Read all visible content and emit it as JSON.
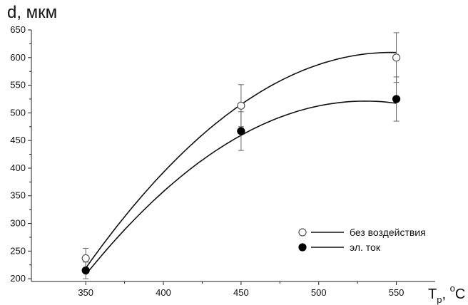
{
  "chart_data": {
    "type": "line",
    "ylabel": "d, мкм",
    "xlabel": {
      "main": "T",
      "sub": "р",
      "sep": ", ",
      "sup": "o",
      "unit": "C"
    },
    "x_ticks": [
      350,
      400,
      450,
      500,
      550
    ],
    "y_ticks": [
      200,
      250,
      300,
      350,
      400,
      450,
      500,
      550,
      600,
      650
    ],
    "xlim": [
      315,
      575
    ],
    "ylim": [
      195,
      650
    ],
    "legend_position": "bottom-right",
    "series": [
      {
        "name": "без воздействия",
        "marker": "open-circle",
        "x": [
          350,
          450,
          550
        ],
        "y": [
          237,
          513,
          600
        ],
        "err": [
          18,
          38,
          45
        ],
        "fit": [
          -0.0101,
          11.04,
          -2407.6
        ]
      },
      {
        "name": "эл. ток",
        "marker": "filled-circle",
        "x": [
          350,
          450,
          550
        ],
        "y": [
          215,
          467,
          525
        ],
        "err": [
          15,
          35,
          40
        ],
        "fit": [
          -0.0097,
          10.28,
          -2202.4
        ]
      }
    ]
  }
}
